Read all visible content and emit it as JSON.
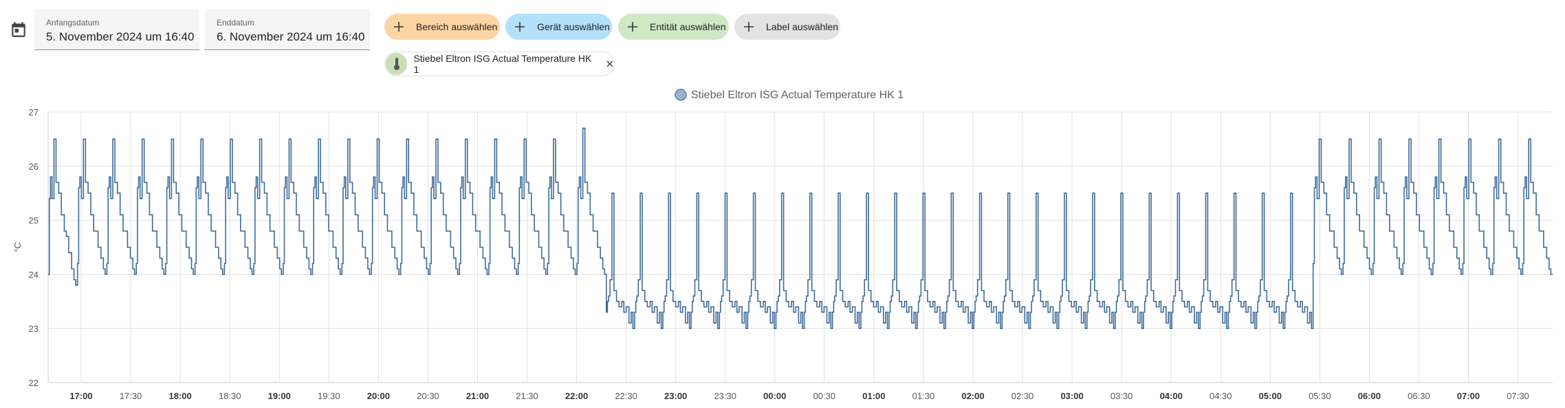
{
  "toolbar": {
    "start": {
      "label": "Anfangsdatum",
      "value": "5. November 2024 um 16:40"
    },
    "end": {
      "label": "Enddatum",
      "value": "6. November 2024 um 16:40"
    },
    "chips": [
      {
        "label": "Bereich auswählen",
        "color": "#fdd5a4"
      },
      {
        "label": "Gerät auswählen",
        "color": "#b3e0fb"
      },
      {
        "label": "Entität auswählen",
        "color": "#d1e8c5"
      },
      {
        "label": "Label auswählen",
        "color": "#e3e3e3"
      }
    ],
    "selected_entity": "Stiebel Eltron ISG Actual Temperature HK 1"
  },
  "chart_data": {
    "type": "line",
    "series": [
      {
        "name": "Stiebel Eltron ISG Actual Temperature HK 1",
        "color": "#3c6a99"
      }
    ],
    "ylabel": "°C",
    "ylim": [
      22,
      27
    ],
    "yticks": [
      22,
      23,
      24,
      25,
      26,
      27
    ],
    "xlim": [
      "16:40",
      "07:51"
    ],
    "xticks": [
      {
        "t": "17:00",
        "bold": true
      },
      {
        "t": "17:30",
        "bold": false
      },
      {
        "t": "18:00",
        "bold": true
      },
      {
        "t": "18:30",
        "bold": false
      },
      {
        "t": "19:00",
        "bold": true
      },
      {
        "t": "19:30",
        "bold": false
      },
      {
        "t": "20:00",
        "bold": true
      },
      {
        "t": "20:30",
        "bold": false
      },
      {
        "t": "21:00",
        "bold": true
      },
      {
        "t": "21:30",
        "bold": false
      },
      {
        "t": "22:00",
        "bold": true
      },
      {
        "t": "22:30",
        "bold": false
      },
      {
        "t": "23:00",
        "bold": true
      },
      {
        "t": "23:30",
        "bold": false
      },
      {
        "t": "00:00",
        "bold": true
      },
      {
        "t": "00:30",
        "bold": false
      },
      {
        "t": "01:00",
        "bold": true
      },
      {
        "t": "01:30",
        "bold": false
      },
      {
        "t": "02:00",
        "bold": true
      },
      {
        "t": "02:30",
        "bold": false
      },
      {
        "t": "03:00",
        "bold": true
      },
      {
        "t": "03:30",
        "bold": false
      },
      {
        "t": "04:00",
        "bold": true
      },
      {
        "t": "04:30",
        "bold": false
      },
      {
        "t": "05:00",
        "bold": true
      },
      {
        "t": "05:30",
        "bold": false
      },
      {
        "t": "06:00",
        "bold": true
      },
      {
        "t": "06:30",
        "bold": false
      },
      {
        "t": "07:00",
        "bold": true
      },
      {
        "t": "07:30",
        "bold": false
      }
    ],
    "segments": [
      {
        "from": "16:40",
        "to": "22:18",
        "period_min": 17.5,
        "peak": 26.5,
        "plateau": 25.4,
        "trough": 24.0,
        "first_trough": 23.8,
        "last_peak": 26.7
      },
      {
        "from": "22:18",
        "to": "05:26",
        "period_min": 17.0,
        "peak": 25.5,
        "plateau": 23.6,
        "trough": 23.0
      },
      {
        "from": "05:26",
        "to": "07:51",
        "period_min": 17.5,
        "peak": 26.5,
        "plateau": 25.4,
        "trough": 24.0
      }
    ],
    "grid": true,
    "legend": "top-center"
  }
}
